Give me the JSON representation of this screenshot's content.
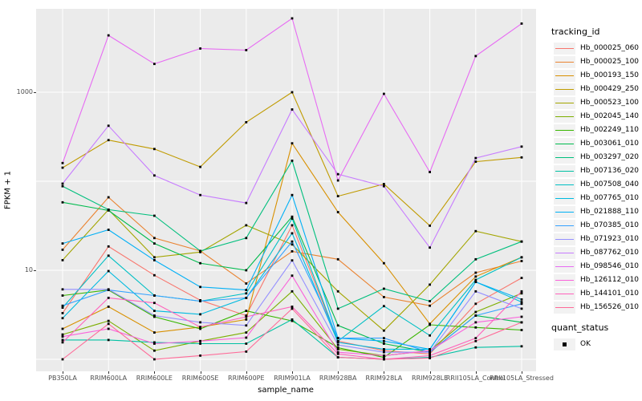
{
  "chart_data": {
    "type": "line",
    "title": "",
    "xlabel": "sample_name",
    "ylabel": "FPKM + 1",
    "y_scale": "log10",
    "ylim": [
      0.75,
      8650
    ],
    "grid": true,
    "legend_position": "right",
    "point_shape": "filled-square",
    "point_color": "#000000",
    "background_color": "#EBEBEB",
    "gridline_color": "#FFFFFF",
    "y_tick_labels": [
      "1000",
      "10"
    ],
    "y_tick_values": [
      1000,
      10
    ],
    "y_gridline_values": [
      1000,
      100,
      10,
      1
    ],
    "categories": [
      "PB350LA",
      "RRIM600LA",
      "RRIM600LE",
      "RRIM600SE",
      "RRIM600PE",
      "RRIM901LA",
      "RRIM928BA",
      "RRIM928LA",
      "RRIM928LE",
      "RRII105LA_Control",
      "RRII105LA_Stressed"
    ],
    "legend": {
      "series_title": "tracking_id",
      "status_title": "quant_status",
      "status_label": "OK"
    },
    "series": [
      {
        "name": "Hb_000025_060",
        "color": "#F8766D",
        "values": [
          3.3,
          18.5,
          8.8,
          4.6,
          3.1,
          32,
          1.6,
          1.25,
          1.15,
          4.2,
          8.2
        ]
      },
      {
        "name": "Hb_000025_100",
        "color": "#EA8331",
        "values": [
          17,
          66,
          23,
          16.5,
          7.1,
          16.3,
          13.3,
          5.0,
          4.0,
          9.4,
          12.7
        ]
      },
      {
        "name": "Hb_000193_150",
        "color": "#D89000",
        "values": [
          2.2,
          3.9,
          2.0,
          2.3,
          2.8,
          267,
          45,
          12,
          2.5,
          8.5,
          14
        ]
      },
      {
        "name": "Hb_000429_250",
        "color": "#C09B00",
        "values": [
          142,
          290,
          230,
          145,
          460,
          1000,
          68,
          93,
          31.7,
          166,
          185
        ]
      },
      {
        "name": "Hb_000523_100",
        "color": "#A3A500",
        "values": [
          13,
          48,
          14,
          16,
          32,
          19.5,
          5.8,
          2.1,
          6.9,
          27.5,
          21
        ]
      },
      {
        "name": "Hb_002045_140",
        "color": "#7CAE00",
        "values": [
          1.9,
          2.7,
          1.25,
          1.6,
          2.0,
          5.8,
          1.3,
          1.1,
          1.25,
          3.4,
          5.5
        ]
      },
      {
        "name": "Hb_002249_110",
        "color": "#39B600",
        "values": [
          5.2,
          6.0,
          3.0,
          2.2,
          3.5,
          2.7,
          1.35,
          1.05,
          2.44,
          2.28,
          2.13
        ]
      },
      {
        "name": "Hb_003061_010",
        "color": "#00BB4E",
        "values": [
          58,
          47,
          20,
          12,
          10,
          40,
          2.4,
          1.5,
          1.2,
          3.1,
          2.6
        ]
      },
      {
        "name": "Hb_003297_020",
        "color": "#00BF7D",
        "values": [
          88,
          48,
          41,
          16.5,
          23,
          170,
          3.7,
          6.2,
          4.5,
          13.3,
          21
        ]
      },
      {
        "name": "Hb_007136_020",
        "color": "#00C1A3",
        "values": [
          1.65,
          1.65,
          1.55,
          1.5,
          1.5,
          2.8,
          1.05,
          1.0,
          1.05,
          1.36,
          1.4
        ]
      },
      {
        "name": "Hb_007508_040",
        "color": "#00BFC4",
        "values": [
          3.8,
          14.6,
          5.2,
          4.5,
          5.5,
          38,
          1.6,
          3.96,
          1.85,
          7.8,
          14
        ]
      },
      {
        "name": "Hb_007765_010",
        "color": "#00BAE0",
        "values": [
          2.9,
          9.8,
          3.5,
          3.2,
          4.9,
          26,
          1.55,
          1.3,
          1.3,
          7.4,
          4.4
        ]
      },
      {
        "name": "Hb_021888_110",
        "color": "#00B0F6",
        "values": [
          20,
          28.5,
          13,
          6.5,
          6.0,
          70,
          1.73,
          1.6,
          1.3,
          7.4,
          4.7
        ]
      },
      {
        "name": "Hb_070385_010",
        "color": "#35A2FF",
        "values": [
          4.0,
          6.0,
          5.2,
          4.5,
          4.9,
          21,
          1.73,
          1.73,
          1.2,
          3.1,
          4.2
        ]
      },
      {
        "name": "Hb_071923_010",
        "color": "#9590FF",
        "values": [
          6.1,
          6.1,
          3.1,
          2.6,
          2.4,
          12.9,
          1.45,
          1.2,
          1.2,
          5.8,
          3.7
        ]
      },
      {
        "name": "Hb_087762_010",
        "color": "#C77CFF",
        "values": [
          94,
          420,
          116,
          70,
          57,
          640,
          120,
          88,
          18,
          182,
          245
        ]
      },
      {
        "name": "Hb_098546_010",
        "color": "#E76BF3",
        "values": [
          160,
          4350,
          2080,
          3100,
          2970,
          6750,
          102,
          960,
          127,
          2550,
          5900
        ]
      },
      {
        "name": "Hb_126112_010",
        "color": "#FA62DB",
        "values": [
          1.8,
          2.2,
          1.5,
          1.6,
          1.75,
          8.7,
          1.2,
          1.1,
          1.25,
          2.6,
          3.0
        ]
      },
      {
        "name": "Hb_144101_010",
        "color": "#FF62BC",
        "values": [
          1.55,
          4.9,
          4.3,
          2.3,
          3.0,
          3.9,
          1.15,
          1.0,
          1.1,
          1.73,
          5.8
        ]
      },
      {
        "name": "Hb_156526_010",
        "color": "#FF6A98",
        "values": [
          1.0,
          2.5,
          1.0,
          1.1,
          1.22,
          3.7,
          1.05,
          1.0,
          1.03,
          1.6,
          2.6
        ]
      }
    ]
  }
}
